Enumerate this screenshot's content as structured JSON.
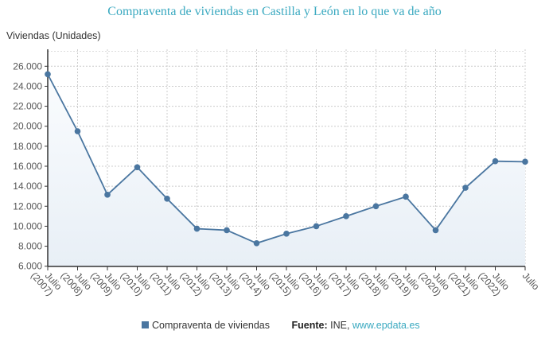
{
  "chart_data": {
    "type": "area",
    "title": "Compraventa de viviendas en Castilla y León en lo que va de año",
    "ylabel": "Viviendas (Unidades)",
    "xlabel": "",
    "categories": [
      "Julio (2007)",
      "Julio (2008)",
      "Julio (2009)",
      "Julio (2010)",
      "Julio (2011)",
      "Julio (2012)",
      "Julio (2013)",
      "Julio (2014)",
      "Julio (2015)",
      "Julio (2016)",
      "Julio (2017)",
      "Julio (2018)",
      "Julio (2019)",
      "Julio (2020)",
      "Julio (2021)",
      "Julio (2022)",
      "Julio"
    ],
    "series": [
      {
        "name": "Compraventa de viviendas",
        "color": "#4a76a0",
        "values": [
          25200,
          19500,
          13150,
          15900,
          12750,
          9750,
          9600,
          8300,
          9250,
          10000,
          11000,
          12000,
          12950,
          9600,
          13850,
          16500,
          16450
        ]
      }
    ],
    "ylim": [
      6000,
      27500
    ],
    "yticks": [
      6000,
      8000,
      10000,
      12000,
      14000,
      16000,
      18000,
      20000,
      22000,
      24000,
      26000
    ],
    "ytick_labels": [
      "6.000",
      "8.000",
      "10.000",
      "12.000",
      "14.000",
      "16.000",
      "18.000",
      "20.000",
      "22.000",
      "24.000",
      "26.000"
    ],
    "grid": true,
    "legend": "bottom"
  },
  "footer": {
    "legend_label": "Compraventa de viviendas",
    "source_label": "Fuente:",
    "source_name": "INE,",
    "source_link": "www.epdata.es"
  }
}
